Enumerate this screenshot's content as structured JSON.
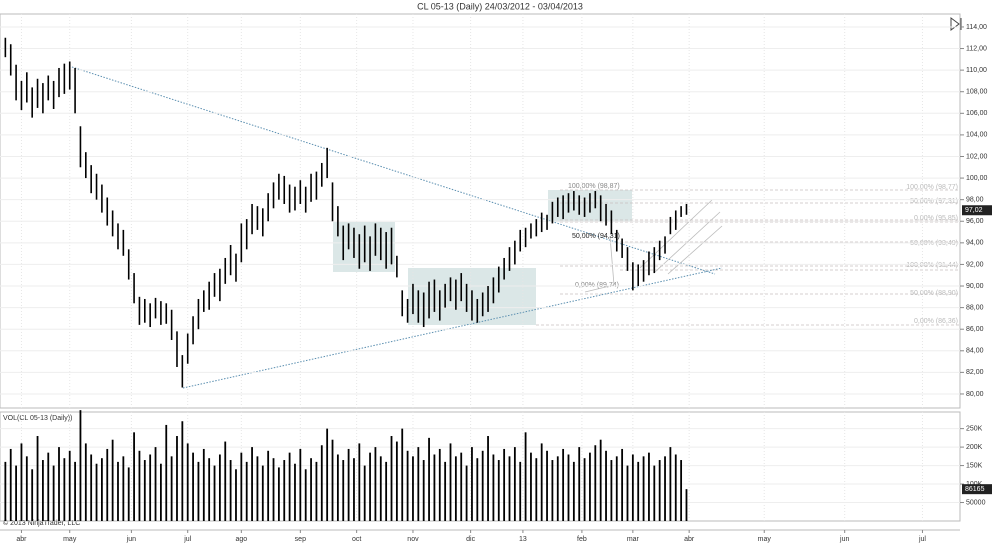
{
  "chart_data": [
    {
      "type": "ohlc",
      "title": "CL 05-13 (Daily)  24/03/2012 - 03/04/2013",
      "color": "#000000",
      "grid": true,
      "x": [
        0,
        2,
        4,
        6,
        8,
        10,
        12,
        14,
        16,
        18,
        20,
        22,
        24,
        26,
        28,
        30,
        32,
        34,
        36,
        38,
        40,
        42,
        44,
        46,
        48,
        50,
        52,
        54,
        56,
        58,
        60,
        62,
        64,
        66,
        68,
        70,
        72,
        74,
        76,
        78,
        80,
        82,
        84,
        86,
        88,
        90,
        92,
        94,
        96,
        98,
        100,
        102,
        104,
        106,
        108,
        110,
        112,
        114,
        116,
        118,
        120,
        122,
        124,
        126,
        128,
        130,
        132,
        134,
        136,
        138,
        140,
        142,
        144,
        146,
        148,
        150,
        152,
        154,
        156,
        158,
        160,
        162,
        164,
        166,
        168,
        170,
        172,
        174,
        176,
        178,
        180,
        182,
        184,
        186,
        188,
        190,
        192,
        194,
        196,
        198,
        200,
        202,
        204,
        206,
        208,
        210,
        212,
        214,
        216,
        218,
        220,
        222,
        224,
        226,
        228,
        230,
        232,
        234,
        236,
        238,
        240,
        242,
        244,
        246,
        248,
        250,
        252,
        254
      ],
      "high": [
        113.0,
        112.4,
        110.5,
        109.0,
        109.8,
        108.4,
        109.2,
        108.8,
        109.5,
        109.0,
        110.2,
        110.6,
        110.8,
        110.2,
        104.8,
        102.4,
        101.2,
        100.4,
        99.4,
        98.2,
        97.0,
        95.8,
        95.2,
        93.4,
        91.2,
        89.0,
        88.8,
        88.4,
        88.9,
        88.6,
        88.4,
        87.8,
        85.8,
        83.6,
        85.6,
        87.2,
        88.8,
        89.6,
        90.4,
        91.2,
        91.6,
        92.6,
        93.8,
        93.0,
        95.8,
        96.2,
        97.6,
        97.4,
        97.2,
        98.6,
        99.6,
        100.4,
        100.2,
        99.4,
        99.2,
        99.8,
        99.2,
        100.4,
        100.6,
        101.4,
        102.8,
        99.6,
        97.4,
        95.6,
        95.8,
        95.4,
        94.8,
        95.6,
        94.6,
        95.8,
        95.4,
        95.0,
        95.4,
        92.8,
        89.6,
        88.8,
        90.2,
        89.6,
        89.4,
        90.4,
        90.6,
        89.6,
        90.2,
        90.8,
        90.6,
        91.2,
        90.2,
        89.6,
        88.8,
        89.4,
        90.0,
        90.8,
        91.8,
        92.6,
        93.6,
        94.2,
        95.2,
        95.4,
        95.8,
        96.2,
        96.8,
        96.6,
        97.8,
        98.2,
        98.4,
        98.6,
        98.8,
        98.4,
        98.2,
        98.6,
        98.8,
        98.4,
        97.6,
        97.0,
        95.2,
        94.4,
        93.6,
        92.2,
        92.0,
        92.4,
        93.2,
        93.6,
        94.2,
        94.6,
        96.4,
        97.0,
        97.4,
        97.6
      ],
      "low": [
        111.2,
        109.5,
        107.2,
        106.3,
        107.0,
        105.6,
        106.5,
        106.0,
        107.2,
        106.4,
        107.5,
        107.8,
        108.2,
        106.0,
        101.0,
        100.0,
        98.6,
        98.0,
        96.8,
        95.6,
        94.6,
        93.4,
        92.8,
        90.6,
        88.4,
        86.4,
        86.6,
        86.2,
        87.0,
        86.4,
        86.5,
        85.0,
        82.5,
        80.6,
        82.8,
        84.6,
        86.0,
        87.6,
        87.8,
        89.0,
        88.6,
        90.2,
        91.0,
        90.4,
        92.2,
        93.4,
        94.8,
        95.2,
        94.6,
        96.0,
        97.2,
        98.0,
        97.6,
        96.8,
        97.0,
        97.6,
        96.8,
        97.8,
        98.0,
        99.2,
        100.0,
        96.0,
        94.6,
        92.4,
        93.4,
        92.6,
        91.6,
        92.2,
        91.4,
        92.8,
        92.4,
        91.6,
        92.0,
        90.8,
        87.2,
        86.6,
        87.4,
        86.6,
        86.2,
        87.0,
        87.6,
        86.8,
        88.0,
        88.6,
        87.8,
        88.6,
        87.6,
        86.8,
        86.6,
        87.2,
        87.6,
        88.4,
        89.4,
        90.6,
        91.4,
        92.0,
        93.2,
        93.6,
        94.4,
        94.6,
        95.0,
        95.2,
        95.8,
        96.4,
        96.2,
        96.8,
        97.0,
        96.6,
        96.4,
        96.8,
        97.2,
        96.0,
        95.6,
        94.8,
        93.2,
        92.6,
        91.4,
        89.6,
        90.0,
        90.4,
        91.0,
        91.2,
        92.4,
        93.0,
        94.8,
        95.2,
        96.4,
        96.6
      ],
      "last": {
        "value": 97.02,
        "label": "97,02"
      },
      "xlim": [
        -2,
        356
      ],
      "ylim": [
        78.7,
        115.2
      ],
      "yticks": [
        {
          "value": 80,
          "label": "80,00"
        },
        {
          "value": 82,
          "label": "82,00"
        },
        {
          "value": 84,
          "label": "84,00"
        },
        {
          "value": 86,
          "label": "86,00"
        },
        {
          "value": 88,
          "label": "88,00"
        },
        {
          "value": 90,
          "label": "90,00"
        },
        {
          "value": 92,
          "label": "92,00"
        },
        {
          "value": 94,
          "label": "94,00"
        },
        {
          "value": 96,
          "label": "96,00"
        },
        {
          "value": 98,
          "label": "98,00"
        },
        {
          "value": 100,
          "label": "100,00"
        },
        {
          "value": 102,
          "label": "102,00"
        },
        {
          "value": 104,
          "label": "104,00"
        },
        {
          "value": 106,
          "label": "106,00"
        },
        {
          "value": 108,
          "label": "108,00"
        },
        {
          "value": 110,
          "label": "110,00"
        },
        {
          "value": 112,
          "label": "112,00"
        },
        {
          "value": 114,
          "label": "114,00"
        }
      ],
      "annotations": [
        "100,00% (98,87)",
        "50,00% (94,31)",
        "0,00% (89,74)",
        "100,00% (98,77)",
        "50,00% (97,31)",
        "0,00% (95,85)",
        "50,00% (93,49)",
        "100,00% (91,44)",
        "50,00% (88,90)",
        "0,00% (86,36)"
      ]
    },
    {
      "type": "bar",
      "title": "VOL(CL 05-13 (Daily))",
      "footer": "© 2013 NinjaTrader, LLC",
      "color": "#000000",
      "grid": true,
      "x": [
        0,
        2,
        4,
        6,
        8,
        10,
        12,
        14,
        16,
        18,
        20,
        22,
        24,
        26,
        28,
        30,
        32,
        34,
        36,
        38,
        40,
        42,
        44,
        46,
        48,
        50,
        52,
        54,
        56,
        58,
        60,
        62,
        64,
        66,
        68,
        70,
        72,
        74,
        76,
        78,
        80,
        82,
        84,
        86,
        88,
        90,
        92,
        94,
        96,
        98,
        100,
        102,
        104,
        106,
        108,
        110,
        112,
        114,
        116,
        118,
        120,
        122,
        124,
        126,
        128,
        130,
        132,
        134,
        136,
        138,
        140,
        142,
        144,
        146,
        148,
        150,
        152,
        154,
        156,
        158,
        160,
        162,
        164,
        166,
        168,
        170,
        172,
        174,
        176,
        178,
        180,
        182,
        184,
        186,
        188,
        190,
        192,
        194,
        196,
        198,
        200,
        202,
        204,
        206,
        208,
        210,
        212,
        214,
        216,
        218,
        220,
        222,
        224,
        226,
        228,
        230,
        232,
        234,
        236,
        238,
        240,
        242,
        244,
        246,
        248,
        250,
        252,
        254
      ],
      "values": [
        160000,
        195000,
        150000,
        210000,
        175000,
        140000,
        230000,
        165000,
        185000,
        150000,
        200000,
        170000,
        190000,
        160000,
        300000,
        210000,
        180000,
        155000,
        170000,
        195000,
        220000,
        160000,
        175000,
        145000,
        240000,
        190000,
        165000,
        180000,
        200000,
        155000,
        260000,
        175000,
        230000,
        270000,
        210000,
        185000,
        160000,
        195000,
        170000,
        150000,
        180000,
        215000,
        165000,
        140000,
        185000,
        160000,
        200000,
        175000,
        150000,
        190000,
        170000,
        145000,
        165000,
        185000,
        155000,
        195000,
        140000,
        170000,
        160000,
        205000,
        250000,
        220000,
        180000,
        165000,
        195000,
        170000,
        210000,
        150000,
        185000,
        200000,
        175000,
        160000,
        230000,
        215000,
        250000,
        190000,
        175000,
        200000,
        165000,
        225000,
        180000,
        195000,
        160000,
        210000,
        175000,
        185000,
        150000,
        200000,
        170000,
        190000,
        230000,
        180000,
        165000,
        195000,
        175000,
        200000,
        160000,
        240000,
        185000,
        170000,
        210000,
        190000,
        165000,
        175000,
        195000,
        180000,
        160000,
        200000,
        170000,
        185000,
        205000,
        220000,
        190000,
        165000,
        175000,
        195000,
        150000,
        180000,
        160000,
        175000,
        185000,
        150000,
        165000,
        175000,
        200000,
        180000,
        165000,
        86165
      ],
      "last": 86165,
      "xlim": [
        -2,
        356
      ],
      "ylim": [
        0,
        295000
      ],
      "yticks": [
        50000,
        {
          "value": 100000,
          "label": "100K"
        },
        {
          "value": 150000,
          "label": "150K"
        },
        {
          "value": 200000,
          "label": "200K"
        },
        {
          "value": 250000,
          "label": "250K"
        }
      ],
      "xticks": [
        {
          "value": 6,
          "label": "abr"
        },
        {
          "value": 24,
          "label": "may"
        },
        {
          "value": 47,
          "label": "jun"
        },
        {
          "value": 68,
          "label": "jul"
        },
        {
          "value": 88,
          "label": "ago"
        },
        {
          "value": 110,
          "label": "sep"
        },
        {
          "value": 131,
          "label": "oct"
        },
        {
          "value": 152,
          "label": "nov"
        },
        {
          "value": 173.5,
          "label": "dic"
        },
        {
          "value": 193,
          "label": "13"
        },
        {
          "value": 215,
          "label": "feb"
        },
        {
          "value": 234,
          "label": "mar"
        },
        {
          "value": 255,
          "label": "abr"
        },
        {
          "value": 283,
          "label": "may"
        },
        {
          "value": 313,
          "label": "jun"
        },
        {
          "value": 342,
          "label": "jul"
        }
      ]
    }
  ]
}
